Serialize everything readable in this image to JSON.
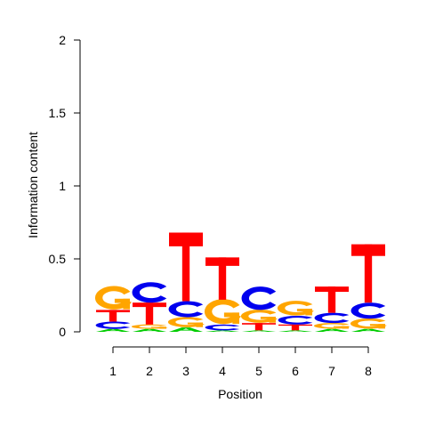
{
  "chart_data": {
    "type": "sequence-logo",
    "xlabel": "Position",
    "ylabel": "Information content",
    "ylim": [
      0,
      2
    ],
    "yticks": [
      "0",
      "0.5",
      "1",
      "1.5",
      "2"
    ],
    "positions": [
      "1",
      "2",
      "3",
      "4",
      "5",
      "6",
      "7",
      "8"
    ],
    "colors": {
      "A": "#00cc00",
      "C": "#0000ee",
      "G": "#ffa500",
      "T": "#ff0000"
    },
    "stacks": [
      [
        {
          "letter": "A",
          "value": 0.02
        },
        {
          "letter": "C",
          "value": 0.05
        },
        {
          "letter": "T",
          "value": 0.08
        },
        {
          "letter": "G",
          "value": 0.16
        }
      ],
      [
        {
          "letter": "A",
          "value": 0.02
        },
        {
          "letter": "G",
          "value": 0.03
        },
        {
          "letter": "T",
          "value": 0.15
        },
        {
          "letter": "C",
          "value": 0.14
        }
      ],
      [
        {
          "letter": "A",
          "value": 0.03
        },
        {
          "letter": "G",
          "value": 0.07
        },
        {
          "letter": "C",
          "value": 0.11
        },
        {
          "letter": "T",
          "value": 0.47
        }
      ],
      [
        {
          "letter": "A",
          "value": 0.01
        },
        {
          "letter": "C",
          "value": 0.04
        },
        {
          "letter": "G",
          "value": 0.17
        },
        {
          "letter": "T",
          "value": 0.29
        }
      ],
      [
        {
          "letter": "A",
          "value": 0.01
        },
        {
          "letter": "T",
          "value": 0.05
        },
        {
          "letter": "G",
          "value": 0.09
        },
        {
          "letter": "C",
          "value": 0.16
        }
      ],
      [
        {
          "letter": "A",
          "value": 0.01
        },
        {
          "letter": "T",
          "value": 0.04
        },
        {
          "letter": "C",
          "value": 0.06
        },
        {
          "letter": "G",
          "value": 0.1
        }
      ],
      [
        {
          "letter": "A",
          "value": 0.02
        },
        {
          "letter": "G",
          "value": 0.04
        },
        {
          "letter": "C",
          "value": 0.07
        },
        {
          "letter": "T",
          "value": 0.18
        }
      ],
      [
        {
          "letter": "A",
          "value": 0.02
        },
        {
          "letter": "G",
          "value": 0.07
        },
        {
          "letter": "C",
          "value": 0.11
        },
        {
          "letter": "T",
          "value": 0.4
        }
      ]
    ]
  }
}
